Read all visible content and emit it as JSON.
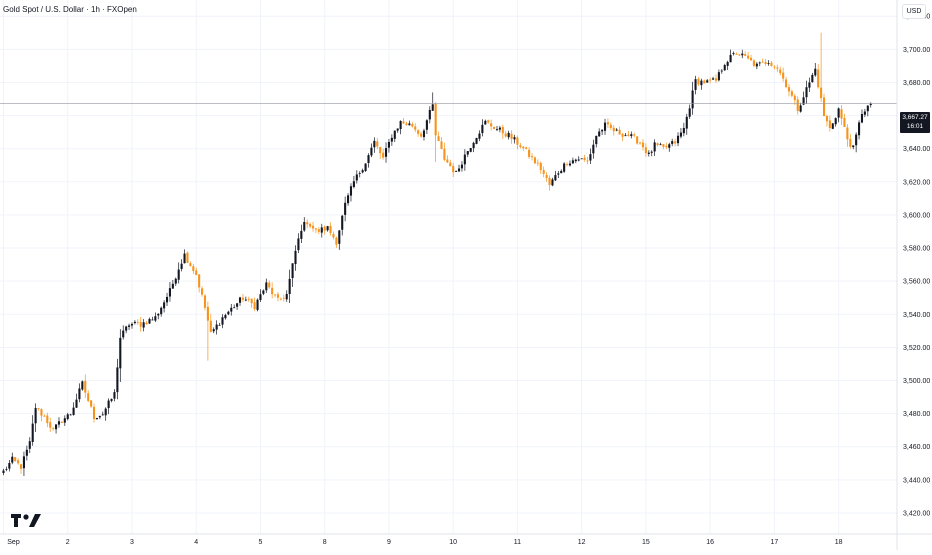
{
  "header": {
    "title": "Gold Spot / U.S. Dollar · 1h · FXOpen",
    "currency": "USD"
  },
  "price_tag": {
    "price": "3,667.27",
    "countdown": "16:01"
  },
  "logo": "tradingview-logo-icon",
  "colors": {
    "up": "#131722",
    "down": "#f7931a",
    "grid": "#f0f3fa",
    "price_line": "#9598a1",
    "text": "#131722",
    "axis_text": "#131722"
  },
  "chart_data": {
    "type": "candlestick",
    "title": "Gold Spot / U.S. Dollar · 1h · FXOpen",
    "ylabel": "USD",
    "ylim": [
      3407.3,
      3729.8
    ],
    "y_ticks": [
      3420,
      3440,
      3460,
      3480,
      3500,
      3520,
      3540,
      3560,
      3580,
      3600,
      3620,
      3640,
      3660,
      3680,
      3700,
      3720
    ],
    "y_tick_labels": [
      "3,420.00",
      "3,440.00",
      "3,460.00",
      "3,480.00",
      "3,500.00",
      "3,520.00",
      "3,540.00",
      "3,560.00",
      "3,580.00",
      "3,600.00",
      "3,620.00",
      "3,640.00",
      "3,660.00",
      "3,680.00",
      "3,700.00",
      "3,720.00"
    ],
    "x_ticks": [
      "Sep",
      "2",
      "3",
      "4",
      "5",
      "8",
      "9",
      "10",
      "11",
      "12",
      "15",
      "16",
      "17",
      "18"
    ],
    "x_tick_index": [
      0,
      22,
      44,
      66,
      88,
      110,
      132,
      154,
      176,
      198,
      220,
      242,
      264,
      286
    ],
    "last_price": 3667.27,
    "grid": true,
    "legend": "none",
    "anchors": [
      [
        0,
        3445
      ],
      [
        3,
        3452
      ],
      [
        6,
        3448
      ],
      [
        9,
        3462
      ],
      [
        11,
        3484
      ],
      [
        14,
        3478
      ],
      [
        17,
        3470
      ],
      [
        20,
        3476
      ],
      [
        23,
        3480
      ],
      [
        27,
        3498
      ],
      [
        31,
        3478
      ],
      [
        34,
        3480
      ],
      [
        38,
        3492
      ],
      [
        40,
        3526
      ],
      [
        43,
        3534
      ],
      [
        47,
        3534
      ],
      [
        52,
        3538
      ],
      [
        57,
        3554
      ],
      [
        60,
        3568
      ],
      [
        62,
        3576
      ],
      [
        66,
        3564
      ],
      [
        69,
        3544
      ],
      [
        71,
        3528
      ],
      [
        75,
        3538
      ],
      [
        79,
        3545
      ],
      [
        82,
        3550
      ],
      [
        86,
        3545
      ],
      [
        90,
        3558
      ],
      [
        94,
        3548
      ],
      [
        97,
        3552
      ],
      [
        100,
        3578
      ],
      [
        102,
        3592
      ],
      [
        104,
        3596
      ],
      [
        107,
        3590
      ],
      [
        111,
        3592
      ],
      [
        114,
        3584
      ],
      [
        117,
        3606
      ],
      [
        120,
        3620
      ],
      [
        124,
        3632
      ],
      [
        127,
        3644
      ],
      [
        130,
        3634
      ],
      [
        133,
        3648
      ],
      [
        136,
        3656
      ],
      [
        140,
        3654
      ],
      [
        143,
        3648
      ],
      [
        147,
        3666
      ],
      [
        148,
        3648
      ],
      [
        151,
        3634
      ],
      [
        155,
        3625
      ],
      [
        158,
        3636
      ],
      [
        162,
        3648
      ],
      [
        165,
        3656
      ],
      [
        169,
        3652
      ],
      [
        173,
        3648
      ],
      [
        177,
        3642
      ],
      [
        181,
        3634
      ],
      [
        184,
        3628
      ],
      [
        187,
        3618
      ],
      [
        190,
        3626
      ],
      [
        193,
        3632
      ],
      [
        197,
        3634
      ],
      [
        200,
        3632
      ],
      [
        203,
        3648
      ],
      [
        206,
        3654
      ],
      [
        210,
        3650
      ],
      [
        214,
        3648
      ],
      [
        218,
        3644
      ],
      [
        221,
        3636
      ],
      [
        223,
        3642
      ],
      [
        226,
        3640
      ],
      [
        230,
        3644
      ],
      [
        233,
        3652
      ],
      [
        235,
        3666
      ],
      [
        237,
        3681
      ],
      [
        241,
        3680
      ],
      [
        244,
        3681
      ],
      [
        247,
        3692
      ],
      [
        251,
        3698
      ],
      [
        254,
        3695
      ],
      [
        258,
        3690
      ],
      [
        262,
        3693
      ],
      [
        265,
        3689
      ],
      [
        268,
        3679
      ],
      [
        272,
        3664
      ],
      [
        275,
        3676
      ],
      [
        278,
        3688
      ],
      [
        281,
        3660
      ],
      [
        283,
        3652
      ],
      [
        286,
        3664
      ],
      [
        289,
        3646
      ],
      [
        291,
        3640
      ],
      [
        294,
        3662
      ],
      [
        297,
        3667
      ]
    ],
    "candle_count": 298
  }
}
